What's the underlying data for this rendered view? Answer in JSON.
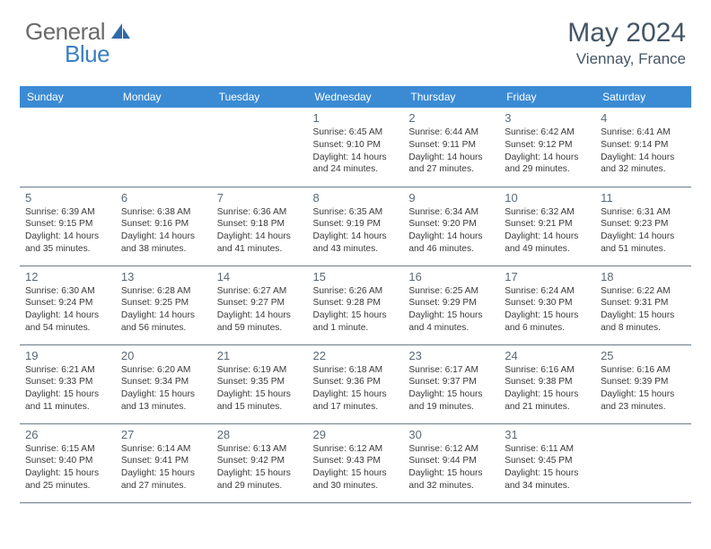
{
  "logo": {
    "general": "General",
    "blue": "Blue"
  },
  "title": "May 2024",
  "location": "Viennay, France",
  "colors": {
    "headerBg": "#3b8bd4",
    "headerText": "#ffffff",
    "border": "#6a7a8a",
    "titleText": "#445566",
    "dayNum": "#5a6a78",
    "bodyText": "#3a3a3a",
    "logoGray": "#6a6a6a",
    "logoBlue": "#3b7fc4"
  },
  "weekdays": [
    "Sunday",
    "Monday",
    "Tuesday",
    "Wednesday",
    "Thursday",
    "Friday",
    "Saturday"
  ],
  "weeks": [
    [
      null,
      null,
      null,
      {
        "n": "1",
        "sr": "6:45 AM",
        "ss": "9:10 PM",
        "dl": "14 hours and 24 minutes."
      },
      {
        "n": "2",
        "sr": "6:44 AM",
        "ss": "9:11 PM",
        "dl": "14 hours and 27 minutes."
      },
      {
        "n": "3",
        "sr": "6:42 AM",
        "ss": "9:12 PM",
        "dl": "14 hours and 29 minutes."
      },
      {
        "n": "4",
        "sr": "6:41 AM",
        "ss": "9:14 PM",
        "dl": "14 hours and 32 minutes."
      }
    ],
    [
      {
        "n": "5",
        "sr": "6:39 AM",
        "ss": "9:15 PM",
        "dl": "14 hours and 35 minutes."
      },
      {
        "n": "6",
        "sr": "6:38 AM",
        "ss": "9:16 PM",
        "dl": "14 hours and 38 minutes."
      },
      {
        "n": "7",
        "sr": "6:36 AM",
        "ss": "9:18 PM",
        "dl": "14 hours and 41 minutes."
      },
      {
        "n": "8",
        "sr": "6:35 AM",
        "ss": "9:19 PM",
        "dl": "14 hours and 43 minutes."
      },
      {
        "n": "9",
        "sr": "6:34 AM",
        "ss": "9:20 PM",
        "dl": "14 hours and 46 minutes."
      },
      {
        "n": "10",
        "sr": "6:32 AM",
        "ss": "9:21 PM",
        "dl": "14 hours and 49 minutes."
      },
      {
        "n": "11",
        "sr": "6:31 AM",
        "ss": "9:23 PM",
        "dl": "14 hours and 51 minutes."
      }
    ],
    [
      {
        "n": "12",
        "sr": "6:30 AM",
        "ss": "9:24 PM",
        "dl": "14 hours and 54 minutes."
      },
      {
        "n": "13",
        "sr": "6:28 AM",
        "ss": "9:25 PM",
        "dl": "14 hours and 56 minutes."
      },
      {
        "n": "14",
        "sr": "6:27 AM",
        "ss": "9:27 PM",
        "dl": "14 hours and 59 minutes."
      },
      {
        "n": "15",
        "sr": "6:26 AM",
        "ss": "9:28 PM",
        "dl": "15 hours and 1 minute."
      },
      {
        "n": "16",
        "sr": "6:25 AM",
        "ss": "9:29 PM",
        "dl": "15 hours and 4 minutes."
      },
      {
        "n": "17",
        "sr": "6:24 AM",
        "ss": "9:30 PM",
        "dl": "15 hours and 6 minutes."
      },
      {
        "n": "18",
        "sr": "6:22 AM",
        "ss": "9:31 PM",
        "dl": "15 hours and 8 minutes."
      }
    ],
    [
      {
        "n": "19",
        "sr": "6:21 AM",
        "ss": "9:33 PM",
        "dl": "15 hours and 11 minutes."
      },
      {
        "n": "20",
        "sr": "6:20 AM",
        "ss": "9:34 PM",
        "dl": "15 hours and 13 minutes."
      },
      {
        "n": "21",
        "sr": "6:19 AM",
        "ss": "9:35 PM",
        "dl": "15 hours and 15 minutes."
      },
      {
        "n": "22",
        "sr": "6:18 AM",
        "ss": "9:36 PM",
        "dl": "15 hours and 17 minutes."
      },
      {
        "n": "23",
        "sr": "6:17 AM",
        "ss": "9:37 PM",
        "dl": "15 hours and 19 minutes."
      },
      {
        "n": "24",
        "sr": "6:16 AM",
        "ss": "9:38 PM",
        "dl": "15 hours and 21 minutes."
      },
      {
        "n": "25",
        "sr": "6:16 AM",
        "ss": "9:39 PM",
        "dl": "15 hours and 23 minutes."
      }
    ],
    [
      {
        "n": "26",
        "sr": "6:15 AM",
        "ss": "9:40 PM",
        "dl": "15 hours and 25 minutes."
      },
      {
        "n": "27",
        "sr": "6:14 AM",
        "ss": "9:41 PM",
        "dl": "15 hours and 27 minutes."
      },
      {
        "n": "28",
        "sr": "6:13 AM",
        "ss": "9:42 PM",
        "dl": "15 hours and 29 minutes."
      },
      {
        "n": "29",
        "sr": "6:12 AM",
        "ss": "9:43 PM",
        "dl": "15 hours and 30 minutes."
      },
      {
        "n": "30",
        "sr": "6:12 AM",
        "ss": "9:44 PM",
        "dl": "15 hours and 32 minutes."
      },
      {
        "n": "31",
        "sr": "6:11 AM",
        "ss": "9:45 PM",
        "dl": "15 hours and 34 minutes."
      },
      null
    ]
  ],
  "labels": {
    "sunrise": "Sunrise: ",
    "sunset": "Sunset: ",
    "daylight": "Daylight: "
  }
}
